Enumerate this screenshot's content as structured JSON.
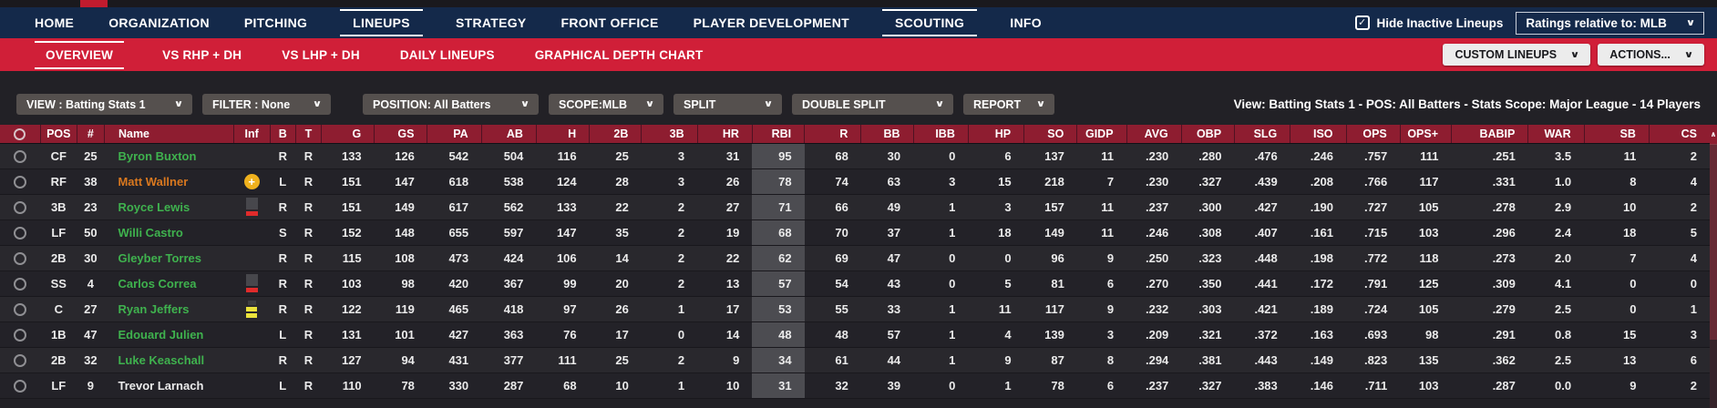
{
  "top_nav": {
    "items": [
      {
        "label": "HOME",
        "active": false
      },
      {
        "label": "ORGANIZATION",
        "active": false
      },
      {
        "label": "PITCHING",
        "active": false
      },
      {
        "label": "LINEUPS",
        "active": true
      },
      {
        "label": "STRATEGY",
        "active": false
      },
      {
        "label": "FRONT OFFICE",
        "active": false
      },
      {
        "label": "PLAYER DEVELOPMENT",
        "active": false
      },
      {
        "label": "SCOUTING",
        "active": true
      },
      {
        "label": "INFO",
        "active": false
      }
    ],
    "hide_inactive": {
      "label": "Hide Inactive Lineups",
      "checked": true
    },
    "ratings_dropdown_value": "Ratings relative to: MLB"
  },
  "sub_nav": {
    "items": [
      {
        "label": "OVERVIEW",
        "active": true
      },
      {
        "label": "VS RHP + DH",
        "active": false
      },
      {
        "label": "VS LHP + DH",
        "active": false
      },
      {
        "label": "DAILY LINEUPS",
        "active": false
      },
      {
        "label": "GRAPHICAL DEPTH CHART",
        "active": false
      }
    ],
    "custom_lineups_button": "CUSTOM LINEUPS",
    "actions_button": "ACTIONS..."
  },
  "filter_bar": {
    "dropdowns": [
      "VIEW : Batting Stats 1",
      "FILTER : None",
      "POSITION: All Batters",
      "SCOPE:MLB",
      "SPLIT",
      "DOUBLE SPLIT",
      "REPORT"
    ],
    "summary": "View: Batting Stats 1 - POS: All Batters - Stats Scope: Major League - 14 Players"
  },
  "table": {
    "columns": [
      "POS",
      "#",
      "Name",
      "Inf",
      "B",
      "T",
      "G",
      "GS",
      "PA",
      "AB",
      "H",
      "2B",
      "3B",
      "HR",
      "RBI",
      "R",
      "BB",
      "IBB",
      "HP",
      "SO",
      "GIDP",
      "AVG",
      "OBP",
      "SLG",
      "ISO",
      "OPS",
      "OPS+",
      "BABIP",
      "WAR",
      "SB",
      "CS"
    ],
    "sorted_column": "RBI",
    "rows": [
      {
        "pos": "CF",
        "num": "25",
        "name": "Byron Buxton",
        "name_color": "green",
        "inf": "",
        "bats": "R",
        "throws": "R",
        "stats": [
          "133",
          "126",
          "542",
          "504",
          "116",
          "25",
          "3",
          "31",
          "95",
          "68",
          "30",
          "0",
          "6",
          "137",
          "11",
          ".230",
          ".280",
          ".476",
          ".246",
          ".757",
          "111",
          ".251",
          "3.5",
          "11",
          "2"
        ]
      },
      {
        "pos": "RF",
        "num": "38",
        "name": "Matt Wallner",
        "name_color": "orange",
        "inf": "injury",
        "bats": "L",
        "throws": "R",
        "stats": [
          "151",
          "147",
          "618",
          "538",
          "124",
          "28",
          "3",
          "26",
          "78",
          "74",
          "63",
          "3",
          "15",
          "218",
          "7",
          ".230",
          ".327",
          ".439",
          ".208",
          ".766",
          "117",
          ".331",
          "1.0",
          "8",
          "4"
        ]
      },
      {
        "pos": "3B",
        "num": "23",
        "name": "Royce Lewis",
        "name_color": "green",
        "inf": "cold",
        "bats": "R",
        "throws": "R",
        "stats": [
          "151",
          "149",
          "617",
          "562",
          "133",
          "22",
          "2",
          "27",
          "71",
          "66",
          "49",
          "1",
          "3",
          "157",
          "11",
          ".237",
          ".300",
          ".427",
          ".190",
          ".727",
          "105",
          ".278",
          "2.9",
          "10",
          "2"
        ]
      },
      {
        "pos": "LF",
        "num": "50",
        "name": "Willi Castro",
        "name_color": "green",
        "inf": "",
        "bats": "S",
        "throws": "R",
        "stats": [
          "152",
          "148",
          "655",
          "597",
          "147",
          "35",
          "2",
          "19",
          "68",
          "70",
          "37",
          "1",
          "18",
          "149",
          "11",
          ".246",
          ".308",
          ".407",
          ".161",
          ".715",
          "103",
          ".296",
          "2.4",
          "18",
          "5"
        ]
      },
      {
        "pos": "2B",
        "num": "30",
        "name": "Gleyber Torres",
        "name_color": "green",
        "inf": "",
        "bats": "R",
        "throws": "R",
        "stats": [
          "115",
          "108",
          "473",
          "424",
          "106",
          "14",
          "2",
          "22",
          "62",
          "69",
          "47",
          "0",
          "0",
          "96",
          "9",
          ".250",
          ".323",
          ".448",
          ".198",
          ".772",
          "118",
          ".273",
          "2.0",
          "7",
          "4"
        ]
      },
      {
        "pos": "SS",
        "num": "4",
        "name": "Carlos Correa",
        "name_color": "green",
        "inf": "cold",
        "bats": "R",
        "throws": "R",
        "stats": [
          "103",
          "98",
          "420",
          "367",
          "99",
          "20",
          "2",
          "13",
          "57",
          "54",
          "43",
          "0",
          "5",
          "81",
          "6",
          ".270",
          ".350",
          ".441",
          ".172",
          ".791",
          "125",
          ".309",
          "4.1",
          "0",
          "0"
        ]
      },
      {
        "pos": "C",
        "num": "27",
        "name": "Ryan Jeffers",
        "name_color": "green",
        "inf": "hot",
        "bats": "R",
        "throws": "R",
        "stats": [
          "122",
          "119",
          "465",
          "418",
          "97",
          "26",
          "1",
          "17",
          "53",
          "55",
          "33",
          "1",
          "11",
          "117",
          "9",
          ".232",
          ".303",
          ".421",
          ".189",
          ".724",
          "105",
          ".279",
          "2.5",
          "0",
          "1"
        ]
      },
      {
        "pos": "1B",
        "num": "47",
        "name": "Edouard Julien",
        "name_color": "green",
        "inf": "",
        "bats": "L",
        "throws": "R",
        "stats": [
          "131",
          "101",
          "427",
          "363",
          "76",
          "17",
          "0",
          "14",
          "48",
          "48",
          "57",
          "1",
          "4",
          "139",
          "3",
          ".209",
          ".321",
          ".372",
          ".163",
          ".693",
          "98",
          ".291",
          "0.8",
          "15",
          "3"
        ]
      },
      {
        "pos": "2B",
        "num": "32",
        "name": "Luke Keaschall",
        "name_color": "green",
        "inf": "",
        "bats": "R",
        "throws": "R",
        "stats": [
          "127",
          "94",
          "431",
          "377",
          "111",
          "25",
          "2",
          "9",
          "34",
          "61",
          "44",
          "1",
          "9",
          "87",
          "8",
          ".294",
          ".381",
          ".443",
          ".149",
          ".823",
          "135",
          ".362",
          "2.5",
          "13",
          "6"
        ]
      },
      {
        "pos": "LF",
        "num": "9",
        "name": "Trevor Larnach",
        "name_color": "white",
        "inf": "",
        "bats": "L",
        "throws": "R",
        "stats": [
          "110",
          "78",
          "330",
          "287",
          "68",
          "10",
          "1",
          "10",
          "31",
          "32",
          "39",
          "0",
          "1",
          "78",
          "6",
          ".237",
          ".327",
          ".383",
          ".146",
          ".711",
          "103",
          ".287",
          "0.0",
          "9",
          "2"
        ]
      }
    ]
  },
  "icons": {
    "chevron_down": "∨",
    "checkmark": "✓",
    "scroll_up": "∧",
    "injury_plus": "+"
  },
  "colors": {
    "nav_navy": "#14294a",
    "accent_red": "#d01f38",
    "header_red": "#8e1d30",
    "name_green": "#3fb24e",
    "name_orange": "#d9781f",
    "injury_gold": "#efb11d",
    "streak_red": "#e02b2b",
    "streak_yellow": "#ece33c",
    "sort_highlight": "#4c4c51"
  }
}
